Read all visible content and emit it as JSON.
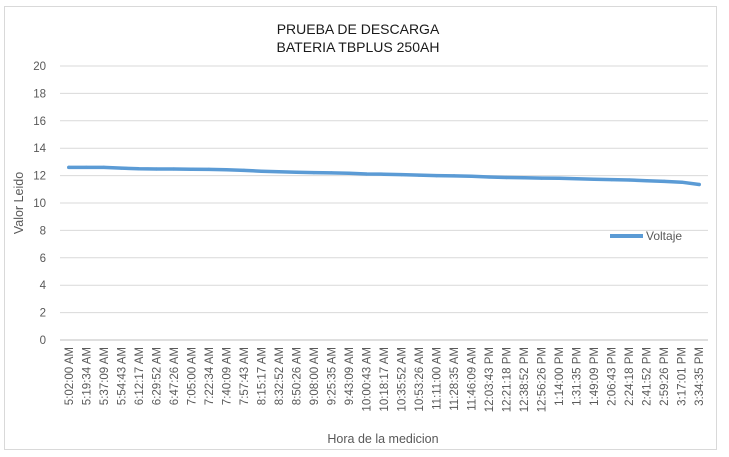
{
  "chart_data": {
    "type": "line",
    "title": [
      "PRUEBA DE DESCARGA",
      "BATERIA TBPLUS 250AH"
    ],
    "xlabel": "Hora de la medicion",
    "ylabel": "Valor Leido",
    "ylim": [
      0,
      20
    ],
    "yticks": [
      0,
      2,
      4,
      6,
      8,
      10,
      12,
      14,
      16,
      18,
      20
    ],
    "grid": true,
    "legend_position": "right",
    "x": [
      "5:02:00 AM",
      "5:19:34 AM",
      "5:37:09 AM",
      "5:54:43 AM",
      "6:12:17 AM",
      "6:29:52 AM",
      "6:47:26 AM",
      "7:05:00 AM",
      "7:22:34 AM",
      "7:40:09 AM",
      "7:57:43 AM",
      "8:15:17 AM",
      "8:32:52 AM",
      "8:50:26 AM",
      "9:08:00 AM",
      "9:25:35 AM",
      "9:43:09 AM",
      "10:00:43 AM",
      "10:18:17 AM",
      "10:35:52 AM",
      "10:53:26 AM",
      "11:11:00 AM",
      "11:28:35 AM",
      "11:46:09 AM",
      "12:03:43 PM",
      "12:21:18 PM",
      "12:38:52 PM",
      "12:56:26 PM",
      "1:14:00 PM",
      "1:31:35 PM",
      "1:49:09 PM",
      "2:06:43 PM",
      "2:24:18 PM",
      "2:41:52 PM",
      "2:59:26 PM",
      "3:17:01 PM",
      "3:34:35 PM"
    ],
    "series": [
      {
        "name": "Voltaje",
        "color": "#5b9bd5",
        "values": [
          12.6,
          12.6,
          12.6,
          12.55,
          12.5,
          12.48,
          12.48,
          12.47,
          12.45,
          12.42,
          12.38,
          12.32,
          12.28,
          12.25,
          12.22,
          12.2,
          12.17,
          12.12,
          12.1,
          12.07,
          12.04,
          12.0,
          11.98,
          11.95,
          11.9,
          11.86,
          11.84,
          11.82,
          11.8,
          11.77,
          11.74,
          11.71,
          11.68,
          11.63,
          11.58,
          11.52,
          11.35
        ]
      }
    ]
  }
}
